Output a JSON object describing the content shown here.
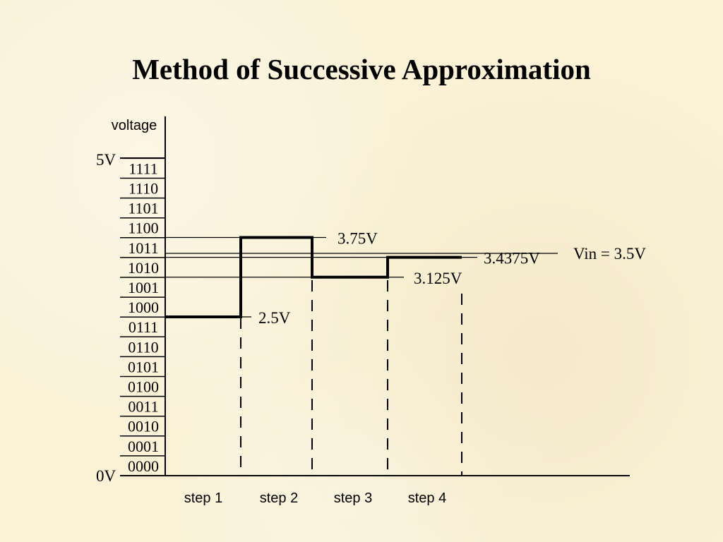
{
  "title": "Method of Successive Approximation",
  "axis": {
    "y_label": "voltage",
    "top_label": "5V",
    "bottom_label": "0V",
    "range_v": [
      0,
      5
    ]
  },
  "codes": [
    "0000",
    "0001",
    "0010",
    "0011",
    "0100",
    "0101",
    "0110",
    "0111",
    "1000",
    "1001",
    "1010",
    "1011",
    "1100",
    "1101",
    "1110",
    "1111"
  ],
  "steps": [
    "step 1",
    "step 2",
    "step 3",
    "step 4"
  ],
  "trial_levels": [
    {
      "label": "2.5V",
      "value": 2.5
    },
    {
      "label": "3.75V",
      "value": 3.75
    },
    {
      "label": "3.125V",
      "value": 3.125
    },
    {
      "label": "3.4375V",
      "value": 3.4375
    }
  ],
  "vin": {
    "label": "Vin = 3.5V",
    "value": 3.5
  }
}
